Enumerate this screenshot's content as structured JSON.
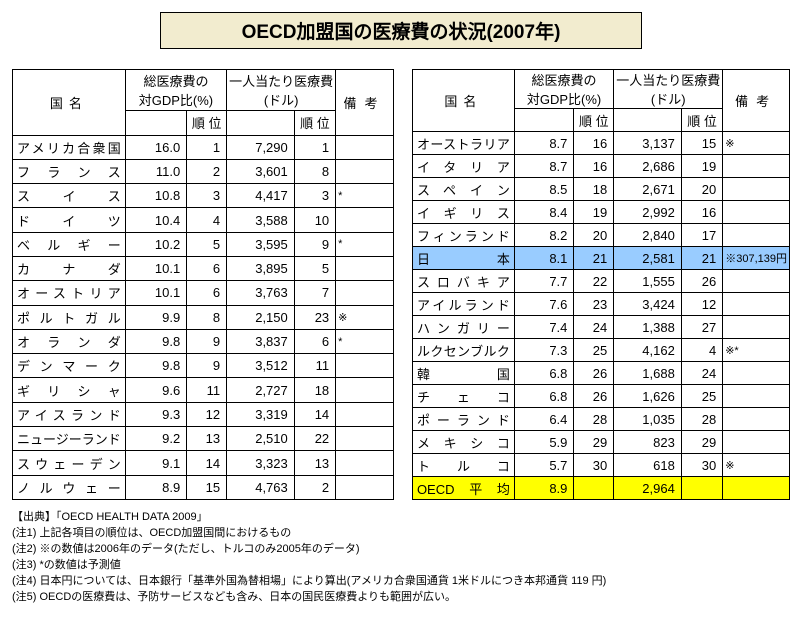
{
  "title": "OECD加盟国の医療費の状況(2007年)",
  "headers": {
    "country": "国名",
    "gdp": "総医療費の\n対GDP比(%)",
    "pcap": "一人当たり医療費\n(ドル)",
    "rank": "順 位",
    "note": "備考"
  },
  "left": [
    {
      "c": "アメリカ合衆国",
      "g": "16.0",
      "gr": "1",
      "p": "7,290",
      "pr": "1",
      "n": ""
    },
    {
      "c": "フランス",
      "g": "11.0",
      "gr": "2",
      "p": "3,601",
      "pr": "8",
      "n": ""
    },
    {
      "c": "スイス",
      "g": "10.8",
      "gr": "3",
      "p": "4,417",
      "pr": "3",
      "n": "*"
    },
    {
      "c": "ドイツ",
      "g": "10.4",
      "gr": "4",
      "p": "3,588",
      "pr": "10",
      "n": ""
    },
    {
      "c": "ベルギー",
      "g": "10.2",
      "gr": "5",
      "p": "3,595",
      "pr": "9",
      "n": "*"
    },
    {
      "c": "カナダ",
      "g": "10.1",
      "gr": "6",
      "p": "3,895",
      "pr": "5",
      "n": ""
    },
    {
      "c": "オーストリア",
      "g": "10.1",
      "gr": "6",
      "p": "3,763",
      "pr": "7",
      "n": ""
    },
    {
      "c": "ポルトガル",
      "g": "9.9",
      "gr": "8",
      "p": "2,150",
      "pr": "23",
      "n": "※"
    },
    {
      "c": "オランダ",
      "g": "9.8",
      "gr": "9",
      "p": "3,837",
      "pr": "6",
      "n": "*"
    },
    {
      "c": "デンマーク",
      "g": "9.8",
      "gr": "9",
      "p": "3,512",
      "pr": "11",
      "n": ""
    },
    {
      "c": "ギリシャ",
      "g": "9.6",
      "gr": "11",
      "p": "2,727",
      "pr": "18",
      "n": ""
    },
    {
      "c": "アイスランド",
      "g": "9.3",
      "gr": "12",
      "p": "3,319",
      "pr": "14",
      "n": ""
    },
    {
      "c": "ニュージーランド",
      "g": "9.2",
      "gr": "13",
      "p": "2,510",
      "pr": "22",
      "n": ""
    },
    {
      "c": "スウェーデン",
      "g": "9.1",
      "gr": "14",
      "p": "3,323",
      "pr": "13",
      "n": ""
    },
    {
      "c": "ノルウェー",
      "g": "8.9",
      "gr": "15",
      "p": "4,763",
      "pr": "2",
      "n": ""
    }
  ],
  "right": [
    {
      "c": "オーストラリア",
      "g": "8.7",
      "gr": "16",
      "p": "3,137",
      "pr": "15",
      "n": "※"
    },
    {
      "c": "イタリア",
      "g": "8.7",
      "gr": "16",
      "p": "2,686",
      "pr": "19",
      "n": ""
    },
    {
      "c": "スペイン",
      "g": "8.5",
      "gr": "18",
      "p": "2,671",
      "pr": "20",
      "n": ""
    },
    {
      "c": "イギリス",
      "g": "8.4",
      "gr": "19",
      "p": "2,992",
      "pr": "16",
      "n": ""
    },
    {
      "c": "フィンランド",
      "g": "8.2",
      "gr": "20",
      "p": "2,840",
      "pr": "17",
      "n": ""
    },
    {
      "c": "日本",
      "g": "8.1",
      "gr": "21",
      "p": "2,581",
      "pr": "21",
      "n": "※307,139円",
      "hl": "blue"
    },
    {
      "c": "スロバキア",
      "g": "7.7",
      "gr": "22",
      "p": "1,555",
      "pr": "26",
      "n": ""
    },
    {
      "c": "アイルランド",
      "g": "7.6",
      "gr": "23",
      "p": "3,424",
      "pr": "12",
      "n": ""
    },
    {
      "c": "ハンガリー",
      "g": "7.4",
      "gr": "24",
      "p": "1,388",
      "pr": "27",
      "n": ""
    },
    {
      "c": "ルクセンブルク",
      "g": "7.3",
      "gr": "25",
      "p": "4,162",
      "pr": "4",
      "n": "※*"
    },
    {
      "c": "韓国",
      "g": "6.8",
      "gr": "26",
      "p": "1,688",
      "pr": "24",
      "n": ""
    },
    {
      "c": "チェコ",
      "g": "6.8",
      "gr": "26",
      "p": "1,626",
      "pr": "25",
      "n": ""
    },
    {
      "c": "ポーランド",
      "g": "6.4",
      "gr": "28",
      "p": "1,035",
      "pr": "28",
      "n": ""
    },
    {
      "c": "メキシコ",
      "g": "5.9",
      "gr": "29",
      "p": "823",
      "pr": "29",
      "n": ""
    },
    {
      "c": "トルコ",
      "g": "5.7",
      "gr": "30",
      "p": "618",
      "pr": "30",
      "n": "※"
    },
    {
      "c": "OECD平均",
      "g": "8.9",
      "gr": "",
      "p": "2,964",
      "pr": "",
      "n": "",
      "hl": "yellow"
    }
  ],
  "footnotes": [
    "【出典】「OECD HEALTH DATA 2009」",
    "(注1) 上記各項目の順位は、OECD加盟国間におけるもの",
    "(注2) ※の数値は2006年のデータ(ただし、トルコのみ2005年のデータ)",
    "(注3) *の数値は予測値",
    "(注4) 日本円については、日本銀行「基準外国為替相場」により算出(アメリカ合衆国通貨 1米ドルにつき本邦通貨 119 円)",
    "(注5) OECDの医療費は、予防サービスなども含み、日本の国民医療費よりも範囲が広い。"
  ]
}
